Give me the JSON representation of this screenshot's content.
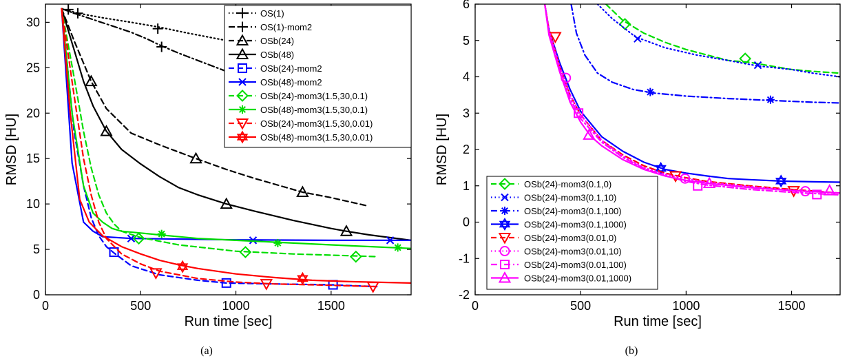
{
  "chart_data": [
    {
      "type": "line",
      "caption": "(a)",
      "xlabel": "Run time [sec]",
      "ylabel": "RMSD [HU]",
      "xlim": [
        0,
        1920
      ],
      "ylim": [
        0,
        32
      ],
      "xticks": [
        0,
        500,
        1000,
        1500
      ],
      "yticks": [
        0,
        5,
        10,
        15,
        20,
        25,
        30
      ],
      "grid": false,
      "legend_position": "top-right",
      "series": [
        {
          "name": "OS(1)",
          "color": "#000000",
          "dash": "dot",
          "marker": "plus",
          "x": [
            85,
            120,
            170,
            300,
            450,
            590,
            750,
            950
          ],
          "y": [
            31.5,
            31.3,
            31.0,
            30.5,
            30.0,
            29.5,
            28.8,
            28.0
          ],
          "mx": [
            120,
            170,
            590
          ],
          "my": [
            31.4,
            31.0,
            29.3
          ]
        },
        {
          "name": "OS(1)-mom2",
          "color": "#000000",
          "dash": "dashdot",
          "marker": "plus",
          "x": [
            85,
            150,
            250,
            350,
            450,
            530,
            610,
            700,
            800,
            900,
            1000
          ],
          "y": [
            31.5,
            31.0,
            30.3,
            29.6,
            28.9,
            28.2,
            27.4,
            26.6,
            25.8,
            25.0,
            24.2
          ],
          "mx": [
            610
          ],
          "my": [
            27.3
          ]
        },
        {
          "name": "OSb(24)",
          "color": "#000000",
          "dash": "dash",
          "marker": "triangle",
          "x": [
            85,
            150,
            240,
            320,
            450,
            600,
            790,
            950,
            1100,
            1350,
            1500,
            1690
          ],
          "y": [
            31.5,
            28.0,
            23.5,
            20.5,
            17.8,
            16.5,
            15.0,
            13.8,
            12.8,
            11.3,
            10.7,
            9.8
          ],
          "mx": [
            240,
            790,
            1350
          ],
          "my": [
            23.5,
            15.0,
            11.3
          ]
        },
        {
          "name": "OSb(48)",
          "color": "#000000",
          "dash": "solid",
          "marker": "triangle",
          "x": [
            85,
            150,
            200,
            250,
            320,
            400,
            500,
            600,
            700,
            800,
            950,
            1100,
            1300,
            1500,
            1580,
            1700,
            1920
          ],
          "y": [
            31.5,
            27.0,
            23.5,
            20.8,
            18.0,
            16.0,
            14.4,
            13.0,
            11.8,
            11.0,
            10.0,
            9.2,
            8.2,
            7.3,
            7.0,
            6.6,
            6.0
          ],
          "mx": [
            320,
            950,
            1580
          ],
          "my": [
            18.0,
            10.0,
            7.0
          ]
        },
        {
          "name": "OSb(24)-mom2",
          "color": "#0000ff",
          "dash": "dash",
          "marker": "square",
          "x": [
            85,
            150,
            200,
            240,
            280,
            320,
            360,
            450,
            600,
            800,
            950,
            1200,
            1500,
            1740
          ],
          "y": [
            31.5,
            18.0,
            12.0,
            8.5,
            6.5,
            5.3,
            4.6,
            3.2,
            2.2,
            1.6,
            1.3,
            1.2,
            1.1,
            0.9
          ],
          "mx": [
            360,
            950,
            1510
          ],
          "my": [
            4.7,
            1.3,
            1.1
          ]
        },
        {
          "name": "OSb(48)-mom2",
          "color": "#0000ff",
          "dash": "solid",
          "marker": "x",
          "x": [
            85,
            140,
            200,
            250,
            300,
            450,
            1000,
            1500,
            1920
          ],
          "y": [
            31.5,
            14.5,
            8.0,
            7.0,
            6.4,
            6.2,
            6.05,
            6.0,
            6.0
          ],
          "mx": [
            450,
            1090,
            1810
          ],
          "my": [
            6.2,
            6.0,
            6.0
          ]
        },
        {
          "name": "OSb(24)-mom3(1.5,30,0.1)",
          "color": "#00dd00",
          "dash": "dash",
          "marker": "diamond",
          "x": [
            85,
            150,
            200,
            240,
            280,
            320,
            360,
            400,
            500,
            700,
            1000,
            1300,
            1600,
            1740
          ],
          "y": [
            31.5,
            24.0,
            18.0,
            14.0,
            11.0,
            9.0,
            7.8,
            7.0,
            6.3,
            5.5,
            4.8,
            4.5,
            4.3,
            4.2
          ],
          "mx": [
            490,
            1050,
            1630
          ],
          "my": [
            6.2,
            4.7,
            4.2
          ]
        },
        {
          "name": "OSb(48)-mom3(1.5,30,0.1)",
          "color": "#00dd00",
          "dash": "solid",
          "marker": "asterisk",
          "x": [
            85,
            140,
            200,
            250,
            300,
            350,
            400,
            500,
            600,
            800,
            1000,
            1200,
            1500,
            1920
          ],
          "y": [
            31.5,
            20.0,
            12.0,
            9.0,
            8.0,
            7.3,
            7.0,
            6.8,
            6.6,
            6.2,
            6.0,
            5.8,
            5.5,
            5.1
          ],
          "mx": [
            610,
            1220,
            1850
          ],
          "my": [
            6.7,
            5.7,
            5.2
          ]
        },
        {
          "name": "OSb(24)-mom3(1.5,30,0.01)",
          "color": "#ff0000",
          "dash": "dash",
          "marker": "triangle-down",
          "x": [
            85,
            150,
            200,
            240,
            280,
            320,
            400,
            500,
            600,
            800,
            1000,
            1200,
            1500,
            1740
          ],
          "y": [
            31.5,
            22.0,
            15.0,
            11.0,
            8.0,
            6.2,
            4.5,
            3.4,
            2.6,
            1.8,
            1.4,
            1.2,
            1.05,
            0.9
          ],
          "mx": [
            580,
            1160,
            1720
          ],
          "my": [
            2.4,
            1.2,
            0.9
          ]
        },
        {
          "name": "OSb(48)-mom3(1.5,30,0.01)",
          "color": "#ff0000",
          "dash": "solid",
          "marker": "hexagram",
          "x": [
            85,
            130,
            180,
            230,
            300,
            400,
            500,
            600,
            700,
            800,
            1000,
            1200,
            1400,
            1600,
            1920
          ],
          "y": [
            31.5,
            20.0,
            10.5,
            8.0,
            6.5,
            5.3,
            4.5,
            3.8,
            3.3,
            2.9,
            2.3,
            1.9,
            1.6,
            1.45,
            1.3
          ],
          "mx": [
            720,
            1350
          ],
          "my": [
            3.1,
            1.8
          ]
        }
      ]
    },
    {
      "type": "line",
      "caption": "(b)",
      "xlabel": "Run time [sec]",
      "ylabel": "RMSD [HU]",
      "xlim": [
        0,
        1730
      ],
      "ylim": [
        -2,
        6
      ],
      "xticks": [
        0,
        500,
        1000,
        1500
      ],
      "yticks": [
        -2,
        -1,
        0,
        1,
        2,
        3,
        4,
        5,
        6
      ],
      "grid": false,
      "legend_position": "bottom-left",
      "series": [
        {
          "name": "OSb(24)-mom3(0.1,0)",
          "color": "#00dd00",
          "dash": "dash",
          "marker": "diamond",
          "x": [
            620,
            700,
            800,
            900,
            1000,
            1100,
            1200,
            1300,
            1400,
            1500,
            1600,
            1730
          ],
          "y": [
            6.0,
            5.55,
            5.2,
            4.95,
            4.75,
            4.6,
            4.45,
            4.4,
            4.3,
            4.2,
            4.15,
            4.1
          ],
          "mx": [
            710,
            1280
          ],
          "my": [
            5.45,
            4.5
          ]
        },
        {
          "name": "OSb(24)-mom3(0.1,10)",
          "color": "#0000ff",
          "dash": "dot",
          "marker": "x",
          "x": [
            580,
            650,
            760,
            900,
            1050,
            1200,
            1340,
            1500,
            1600,
            1730
          ],
          "y": [
            6.0,
            5.6,
            5.1,
            4.8,
            4.6,
            4.45,
            4.3,
            4.2,
            4.1,
            4.0
          ],
          "mx": [
            770,
            1340
          ],
          "my": [
            5.05,
            4.32
          ]
        },
        {
          "name": "OSb(24)-mom3(0.1,100)",
          "color": "#0000ff",
          "dash": "dashdot",
          "marker": "asterisk",
          "x": [
            455,
            480,
            520,
            580,
            650,
            750,
            850,
            1000,
            1200,
            1400,
            1600,
            1730
          ],
          "y": [
            6.0,
            5.2,
            4.6,
            4.1,
            3.85,
            3.65,
            3.55,
            3.47,
            3.4,
            3.35,
            3.3,
            3.28
          ],
          "mx": [
            830,
            1400
          ],
          "my": [
            3.58,
            3.37
          ]
        },
        {
          "name": "OSb(24)-mom3(0.1,1000)",
          "color": "#0000ff",
          "dash": "solid",
          "marker": "hexagram",
          "x": [
            330,
            350,
            400,
            450,
            500,
            600,
            700,
            800,
            900,
            1000,
            1100,
            1200,
            1300,
            1450,
            1600,
            1730
          ],
          "y": [
            6.0,
            5.3,
            4.4,
            3.65,
            3.05,
            2.35,
            1.95,
            1.65,
            1.45,
            1.35,
            1.27,
            1.2,
            1.17,
            1.13,
            1.11,
            1.1
          ],
          "mx": [
            880,
            1450
          ],
          "my": [
            1.48,
            1.13
          ]
        },
        {
          "name": "OSb(24)-mom3(0.01,0)",
          "color": "#ff0000",
          "dash": "dash",
          "marker": "triangle-down",
          "x": [
            330,
            350,
            400,
            450,
            500,
            600,
            700,
            800,
            900,
            1000,
            1100,
            1300,
            1500,
            1730
          ],
          "y": [
            6.0,
            5.3,
            4.3,
            3.5,
            2.95,
            2.25,
            1.85,
            1.55,
            1.35,
            1.22,
            1.12,
            1.0,
            0.9,
            0.8
          ],
          "mx": [
            380,
            950,
            1510
          ],
          "my": [
            5.1,
            1.27,
            0.86
          ]
        },
        {
          "name": "OSb(24)-mom3(0.01,10)",
          "color": "#ff00ff",
          "dash": "dot",
          "marker": "circle",
          "x": [
            330,
            350,
            400,
            450,
            500,
            600,
            700,
            800,
            900,
            1000,
            1100,
            1300,
            1500,
            1730
          ],
          "y": [
            6.0,
            5.3,
            4.3,
            3.5,
            2.95,
            2.25,
            1.82,
            1.5,
            1.32,
            1.2,
            1.1,
            0.98,
            0.88,
            0.8
          ],
          "mx": [
            430,
            995,
            1565
          ],
          "my": [
            3.97,
            1.2,
            0.85
          ]
        },
        {
          "name": "OSb(24)-mom3(0.01,100)",
          "color": "#ff00ff",
          "dash": "dashdot",
          "marker": "square",
          "x": [
            330,
            350,
            400,
            450,
            500,
            600,
            700,
            800,
            900,
            1000,
            1100,
            1300,
            1500,
            1730
          ],
          "y": [
            6.0,
            5.2,
            4.2,
            3.4,
            2.85,
            2.2,
            1.78,
            1.48,
            1.28,
            1.12,
            1.02,
            0.9,
            0.82,
            0.75
          ],
          "mx": [
            490,
            1055,
            1620
          ],
          "my": [
            3.0,
            1.0,
            0.76
          ]
        },
        {
          "name": "OSb(24)-mom3(0.01,1000)",
          "color": "#ff00ff",
          "dash": "solid",
          "marker": "triangle",
          "x": [
            330,
            350,
            400,
            450,
            500,
            550,
            600,
            700,
            800,
            900,
            1000,
            1100,
            1300,
            1500,
            1730
          ],
          "y": [
            6.0,
            5.15,
            4.15,
            3.3,
            2.75,
            2.35,
            2.1,
            1.72,
            1.45,
            1.27,
            1.15,
            1.07,
            0.95,
            0.87,
            0.8
          ],
          "mx": [
            540,
            1110,
            1680
          ],
          "my": [
            2.4,
            1.07,
            0.87
          ]
        }
      ]
    }
  ]
}
